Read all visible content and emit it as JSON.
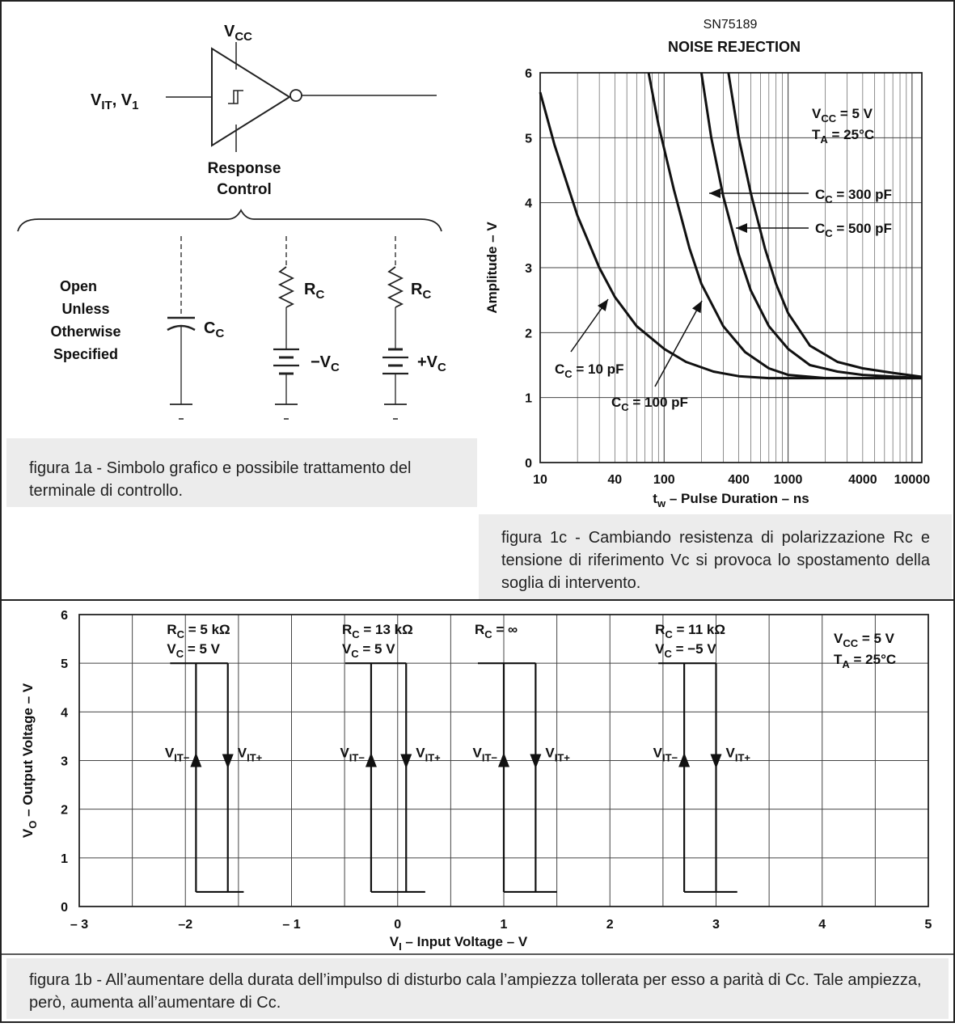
{
  "symbol": {
    "vcc_label": "V",
    "vcc_sub": "CC",
    "input_label": "V",
    "input_sub": "IT",
    "input_tail": ", V",
    "input_sub2": "1",
    "response_line1": "Response",
    "response_line2": "Control",
    "open_line1": "Open",
    "open_line2": "Unless",
    "open_line3": "Otherwise",
    "open_line4": "Specified",
    "cc_label": "C",
    "cc_sub": "C",
    "rc_label": "R",
    "rc_sub": "C",
    "neg_vc": "−V",
    "pos_vc": "+V",
    "vc_sub": "C"
  },
  "captions": {
    "fig1a": "figura 1a - Simbolo grafico e possibile trattamento del terminale di controllo.",
    "fig1c": "figura 1c - Cambiando resistenza di polarizzazione Rc e tensione di riferimento Vc si provoca lo spostamento della soglia di intervento.",
    "fig1b": "figura 1b - All’aumentare della durata dell’impulso di disturbo cala l’ampiezza tollerata per esso a parità di Cc. Tale ampiezza, però, aumenta all’aumentare di Cc."
  },
  "chart_data": [
    {
      "type": "line",
      "title": "SN75189",
      "subtitle": "NOISE REJECTION",
      "xlabel": "tₙ – Pulse Duration – ns",
      "xlabel_main": "t",
      "xlabel_sub": "w",
      "xlabel_tail": " – Pulse Duration – ns",
      "ylabel": "Amplitude – V",
      "x_scale": "log",
      "xlim": [
        10,
        12000
      ],
      "ylim": [
        0,
        6
      ],
      "x_ticks": [
        10,
        40,
        100,
        400,
        1000,
        4000,
        10000
      ],
      "x_tick_labels": [
        "10",
        "40",
        "100",
        "400",
        "1000",
        "4000",
        "10000"
      ],
      "y_ticks": [
        0,
        1,
        2,
        3,
        4,
        5,
        6
      ],
      "y_tick_labels": [
        "0",
        "1",
        "2",
        "3",
        "4",
        "5",
        "6"
      ],
      "grid": true,
      "conditions": [
        {
          "main": "V",
          "sub": "CC",
          "tail": " = 5 V"
        },
        {
          "main": "T",
          "sub": "A",
          "tail": " = 25°C"
        }
      ],
      "series": [
        {
          "label_main": "C",
          "label_sub": "C",
          "label_tail": " = 10 pF",
          "x": [
            10,
            13,
            20,
            30,
            40,
            60,
            100,
            150,
            250,
            400,
            700,
            1000,
            12000
          ],
          "y": [
            5.7,
            4.9,
            3.8,
            3.0,
            2.55,
            2.1,
            1.75,
            1.55,
            1.4,
            1.33,
            1.3,
            1.3,
            1.3
          ]
        },
        {
          "label_main": "C",
          "label_sub": "C",
          "label_tail": " = 100 pF",
          "x": [
            75,
            90,
            120,
            160,
            200,
            300,
            450,
            700,
            1000,
            2000,
            12000
          ],
          "y": [
            6.0,
            5.2,
            4.2,
            3.3,
            2.75,
            2.1,
            1.7,
            1.45,
            1.35,
            1.3,
            1.3
          ]
        },
        {
          "label_main": "C",
          "label_sub": "C",
          "label_tail": " = 300 pF",
          "x": [
            200,
            240,
            300,
            400,
            500,
            700,
            1000,
            1500,
            2500,
            4000,
            12000
          ],
          "y": [
            6.0,
            5.0,
            4.1,
            3.2,
            2.65,
            2.1,
            1.75,
            1.5,
            1.4,
            1.35,
            1.3
          ]
        },
        {
          "label_main": "C",
          "label_sub": "C",
          "label_tail": " = 500 pF",
          "x": [
            330,
            400,
            500,
            650,
            800,
            1000,
            1500,
            2500,
            4000,
            7000,
            12000
          ],
          "y": [
            6.0,
            5.0,
            4.15,
            3.3,
            2.75,
            2.3,
            1.8,
            1.55,
            1.45,
            1.38,
            1.32
          ]
        }
      ]
    },
    {
      "type": "line",
      "xlabel": "V₁ – Input Voltage – V",
      "xlabel_main": "V",
      "xlabel_sub": "I",
      "xlabel_tail": " – Input Voltage – V",
      "ylabel": "Vₒ – Output Voltage – V",
      "ylabel_main": "V",
      "ylabel_sub": "O",
      "ylabel_tail": " – Output Voltage – V",
      "xlim": [
        -3,
        5
      ],
      "ylim": [
        0,
        6
      ],
      "x_ticks": [
        -3,
        -2,
        -1,
        0,
        1,
        2,
        3,
        4,
        5
      ],
      "x_tick_labels": [
        "– 3",
        "–2",
        "– 1",
        "0",
        "1",
        "2",
        "3",
        "4",
        "5"
      ],
      "y_ticks": [
        0,
        1,
        2,
        3,
        4,
        5,
        6
      ],
      "y_tick_labels": [
        "0",
        "1",
        "2",
        "3",
        "4",
        "5",
        "6"
      ],
      "grid": true,
      "conditions": [
        {
          "main": "V",
          "sub": "CC",
          "tail": " = 5 V"
        },
        {
          "main": "T",
          "sub": "A",
          "tail": " = 25°C"
        }
      ],
      "loops": [
        {
          "rc": "R",
          "rc_sub": "C",
          "rc_tail": " = 5 kΩ",
          "vc": "V",
          "vc_sub": "C",
          "vc_tail": " = 5 V",
          "vit_minus": -1.9,
          "vit_plus": -1.6,
          "high": 5.0,
          "low": 0.3,
          "x_start": -1.9,
          "x_end": -1.45
        },
        {
          "rc": "R",
          "rc_sub": "C",
          "rc_tail": " = 13 kΩ",
          "vc": "V",
          "vc_sub": "C",
          "vc_tail": " = 5 V",
          "vit_minus": -0.25,
          "vit_plus": 0.08,
          "high": 5.0,
          "low": 0.3,
          "x_start": -0.25,
          "x_end": 0.26
        },
        {
          "rc": "R",
          "rc_sub": "C",
          "rc_tail": " = ∞",
          "vc": "",
          "vc_sub": "",
          "vc_tail": "",
          "vit_minus": 1.0,
          "vit_plus": 1.3,
          "high": 5.0,
          "low": 0.3,
          "x_start": 1.0,
          "x_end": 1.5
        },
        {
          "rc": "R",
          "rc_sub": "C",
          "rc_tail": " = 11 kΩ",
          "vc": "V",
          "vc_sub": "C",
          "vc_tail": " = −5 V",
          "vit_minus": 2.7,
          "vit_plus": 3.0,
          "high": 5.0,
          "low": 0.3,
          "x_start": 2.7,
          "x_end": 3.2
        }
      ],
      "threshold_labels": {
        "minus_main": "V",
        "minus_sub": "IT−",
        "plus_main": "V",
        "plus_sub": "IT+"
      }
    }
  ]
}
